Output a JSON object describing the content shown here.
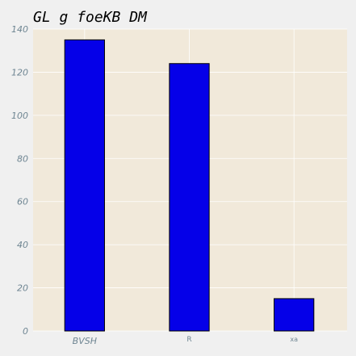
{
  "chart_data": {
    "type": "bar",
    "title": "GL g foeKB  DM",
    "xlabel": "",
    "ylabel": "",
    "categories": [
      "BVSH",
      "R",
      "xa"
    ],
    "values": [
      135,
      124,
      15
    ],
    "ylim": [
      0,
      140
    ],
    "yticks": [
      0,
      20,
      40,
      60,
      80,
      100,
      120,
      140
    ],
    "grid": true,
    "colors": {
      "bar_fill": "#0500e8",
      "bar_edge": "#000000",
      "plot_background": "#f1e9da",
      "figure_background": "#f0f0f0",
      "grid": "#ffffff",
      "tick_label": "#6e8592"
    }
  }
}
